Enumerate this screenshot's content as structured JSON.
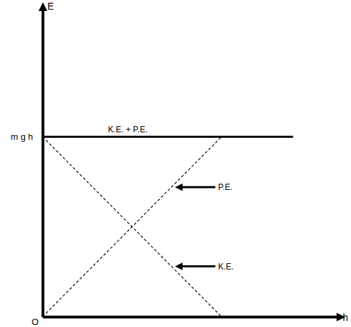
{
  "chart_data": {
    "type": "line",
    "x_label": "h",
    "y_label": "E",
    "origin_label": "O",
    "xlim": [
      0,
      1.67
    ],
    "ylim": [
      0,
      1.73
    ],
    "xticks": [],
    "yticks": [
      {
        "value": 1,
        "label": "m g h"
      }
    ],
    "tick_labels": "y",
    "series": [
      {
        "name": "K.E. + P.E.",
        "color": "#000000",
        "line_style": "solid",
        "x": [
          0,
          1.4
        ],
        "values": [
          1,
          1
        ]
      },
      {
        "name": "P.E.",
        "color": "#000000",
        "line_style": "dashed",
        "x": [
          0,
          1
        ],
        "values": [
          0,
          1
        ]
      },
      {
        "name": "K.E.",
        "color": "#000000",
        "line_style": "dashed",
        "x": [
          0,
          1
        ],
        "values": [
          1,
          0
        ]
      }
    ]
  }
}
